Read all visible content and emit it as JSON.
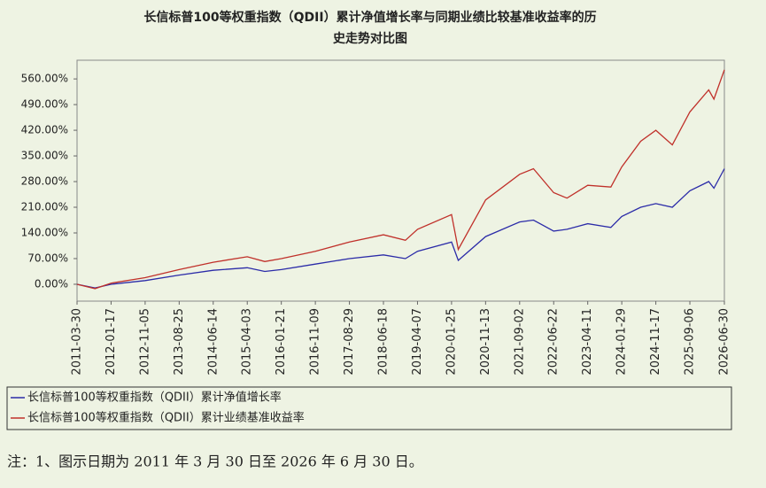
{
  "chart_data": {
    "type": "line",
    "title_lines": [
      "长信标普100等权重指数（QDII）累计净值增长率与同期业绩比较基准收益率的历",
      "史走势对比图"
    ],
    "x": [
      "2011-03-30",
      "2011-09-01",
      "2012-01-17",
      "2012-11-05",
      "2013-08-25",
      "2014-06-14",
      "2015-04-03",
      "2015-09-01",
      "2016-01-21",
      "2016-11-09",
      "2017-08-29",
      "2018-06-18",
      "2018-12-24",
      "2019-04-07",
      "2020-01-25",
      "2020-03-23",
      "2020-11-13",
      "2021-09-02",
      "2021-12-30",
      "2022-06-22",
      "2022-10-15",
      "2023-04-11",
      "2023-10-27",
      "2024-01-29",
      "2024-07-10",
      "2024-11-17",
      "2025-04-08",
      "2025-09-06",
      "2026-02-15",
      "2026-04-01",
      "2026-06-30"
    ],
    "series": [
      {
        "name": "长信标普100等权重指数（QDII）累计净值增长率",
        "color": "#2b2ba8",
        "values": [
          0,
          -10,
          0,
          10,
          25,
          38,
          45,
          35,
          40,
          55,
          70,
          80,
          70,
          90,
          115,
          65,
          130,
          170,
          175,
          145,
          150,
          165,
          155,
          185,
          210,
          220,
          210,
          255,
          280,
          262,
          315
        ]
      },
      {
        "name": "长信标普100等权重指数（QDII）累计业绩基准收益率",
        "color": "#c0302a",
        "values": [
          0,
          -12,
          3,
          18,
          40,
          60,
          75,
          62,
          70,
          90,
          115,
          135,
          120,
          150,
          190,
          95,
          230,
          300,
          315,
          250,
          235,
          270,
          265,
          320,
          390,
          420,
          380,
          470,
          530,
          505,
          585
        ]
      }
    ],
    "xlim": [
      "2011-03-30",
      "2026-06-30"
    ],
    "xticks": [
      "2011-03-30",
      "2012-01-17",
      "2012-11-05",
      "2013-08-25",
      "2014-06-14",
      "2015-04-03",
      "2016-01-21",
      "2016-11-09",
      "2017-08-29",
      "2018-06-18",
      "2019-04-07",
      "2020-01-25",
      "2020-11-13",
      "2021-09-02",
      "2022-06-22",
      "2023-04-11",
      "2024-01-29",
      "2024-11-17",
      "2025-09-06",
      "2026-06-30"
    ],
    "ylim": [
      -46,
      611
    ],
    "yticks": [
      {
        "value": 0,
        "label": "0.00%"
      },
      {
        "value": 70,
        "label": "70.00%"
      },
      {
        "value": 140,
        "label": "140.00%"
      },
      {
        "value": 210,
        "label": "210.00%"
      },
      {
        "value": 280,
        "label": "280.00%"
      },
      {
        "value": 350,
        "label": "350.00%"
      },
      {
        "value": 420,
        "label": "420.00%"
      },
      {
        "value": 490,
        "label": "490.00%"
      },
      {
        "value": 560,
        "label": "560.00%"
      }
    ],
    "note": "注：1、图示日期为 2011 年 3 月 30 日至 2026 年 6 月 30 日。"
  }
}
